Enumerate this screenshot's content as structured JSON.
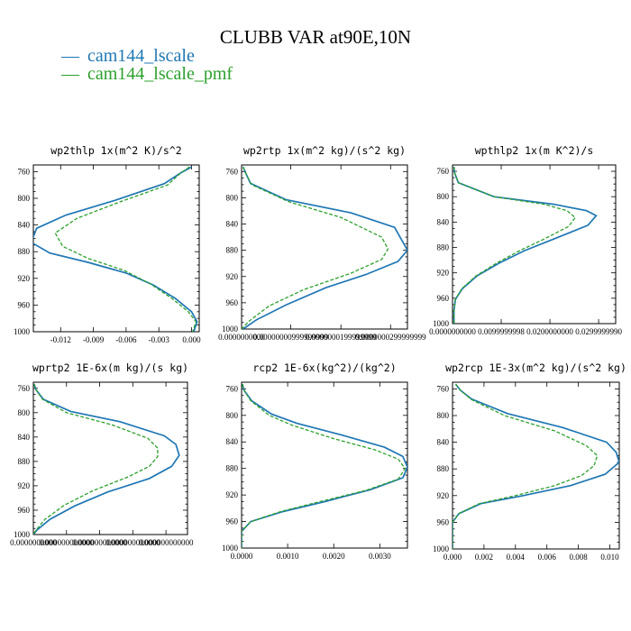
{
  "title": "CLUBB VAR at90E,10N",
  "colors": {
    "cam144_lscale": "#1f77b4",
    "cam144_lscale_pmf": "#2ca02c"
  },
  "legend": [
    {
      "symbol": "—",
      "label": "cam144_lscale"
    },
    {
      "symbol": "—",
      "label": "cam144_lscale_pmf"
    }
  ],
  "chart_data": [
    {
      "type": "line",
      "title": "wp2thlp  1x(m^2 K)/s^2",
      "xlim": [
        -0.0145,
        0.0007
      ],
      "ylim": [
        1000,
        750
      ],
      "xticks": [
        -0.012,
        -0.009,
        -0.006,
        -0.003,
        0.0
      ],
      "xtick_labels": [
        "-0.012",
        "-0.009",
        "-0.006",
        "-0.003",
        "0.000"
      ],
      "yticks": [
        760,
        800,
        840,
        880,
        920,
        960,
        1000
      ],
      "ytick_labels": [
        "760",
        "800",
        "840",
        "880",
        "920",
        "960",
        "1000"
      ],
      "series": [
        {
          "name": "cam144_lscale",
          "points": [
            [
              0.0,
              753
            ],
            [
              -0.001,
              762
            ],
            [
              -0.0025,
              778
            ],
            [
              -0.007,
              803
            ],
            [
              -0.0115,
              825
            ],
            [
              -0.0142,
              845
            ],
            [
              -0.0147,
              866
            ],
            [
              -0.013,
              882
            ],
            [
              -0.0095,
              896
            ],
            [
              -0.006,
              912
            ],
            [
              -0.0035,
              930
            ],
            [
              -0.0015,
              950
            ],
            [
              0.0,
              970
            ],
            [
              0.0005,
              985
            ],
            [
              0.0002,
              1000
            ]
          ]
        },
        {
          "name": "cam144_lscale_pmf",
          "points": [
            [
              -0.0002,
              753
            ],
            [
              -0.001,
              762
            ],
            [
              -0.0022,
              780
            ],
            [
              -0.0065,
              805
            ],
            [
              -0.0105,
              830
            ],
            [
              -0.0125,
              852
            ],
            [
              -0.0118,
              872
            ],
            [
              -0.0095,
              890
            ],
            [
              -0.0062,
              908
            ],
            [
              -0.0038,
              928
            ],
            [
              -0.0018,
              950
            ],
            [
              -0.0003,
              970
            ],
            [
              0.0004,
              985
            ],
            [
              0.0001,
              1000
            ]
          ]
        }
      ]
    },
    {
      "type": "line",
      "title": "wp2rtp  1x(m^2 kg)/(s^2 kg)",
      "xlim": [
        0.0,
        3.34e-08
      ],
      "ylim": [
        1000,
        750
      ],
      "xticks": [
        0.0,
        9.9e-09,
        2e-08,
        3e-08
      ],
      "xtick_labels": [
        "0.0000000000",
        "0.00000000999999999",
        "0.0000000199999999",
        "0.0000000299999999"
      ],
      "yticks": [
        760,
        800,
        840,
        880,
        920,
        960,
        1000
      ],
      "ytick_labels": [
        "760",
        "800",
        "840",
        "880",
        "920",
        "960",
        "1000"
      ],
      "series": [
        {
          "name": "cam144_lscale",
          "points": [
            [
              3e-10,
              753
            ],
            [
              8e-10,
              762
            ],
            [
              1.8e-09,
              778
            ],
            [
              9e-09,
              803
            ],
            [
              2.2e-08,
              823
            ],
            [
              3.08e-08,
              845
            ],
            [
              3.34e-08,
              880
            ],
            [
              3.15e-08,
              897
            ],
            [
              2.5e-08,
              917
            ],
            [
              1.7e-08,
              937
            ],
            [
              9e-09,
              963
            ],
            [
              3e-09,
              986
            ],
            [
              3e-10,
              1000
            ]
          ]
        },
        {
          "name": "cam144_lscale_pmf",
          "points": [
            [
              3e-10,
              753
            ],
            [
              8e-10,
              762
            ],
            [
              2e-09,
              780
            ],
            [
              9.5e-09,
              806
            ],
            [
              2e-08,
              830
            ],
            [
              2.82e-08,
              860
            ],
            [
              2.95e-08,
              878
            ],
            [
              2.82e-08,
              894
            ],
            [
              2.2e-08,
              915
            ],
            [
              1.25e-08,
              940
            ],
            [
              5.5e-09,
              965
            ],
            [
              1.5e-09,
              988
            ],
            [
              0.0,
              1000
            ]
          ]
        }
      ]
    },
    {
      "type": "line",
      "title": "wpthlp2  1x(m K^2)/s",
      "xlim": [
        0.0,
        0.0335
      ],
      "ylim": [
        1000,
        750
      ],
      "xticks": [
        0.0,
        0.0099999998,
        0.02,
        0.0299999
      ],
      "xtick_labels": [
        "0.0000000000",
        "0.0099999998",
        "0.0200000000",
        "0.0299999990"
      ],
      "yticks": [
        760,
        800,
        840,
        880,
        920,
        960,
        1000
      ],
      "ytick_labels": [
        "760",
        "800",
        "840",
        "880",
        "920",
        "960",
        "1000"
      ],
      "series": [
        {
          "name": "cam144_lscale",
          "points": [
            [
              0.0003,
              753
            ],
            [
              0.0004,
              762
            ],
            [
              0.0012,
              778
            ],
            [
              0.0085,
              800
            ],
            [
              0.0208,
              812
            ],
            [
              0.0275,
              822
            ],
            [
              0.0295,
              830
            ],
            [
              0.0278,
              845
            ],
            [
              0.021,
              866
            ],
            [
              0.0148,
              885
            ],
            [
              0.0095,
              905
            ],
            [
              0.005,
              925
            ],
            [
              0.002,
              945
            ],
            [
              0.0006,
              962
            ],
            [
              0.0003,
              980
            ],
            [
              0.0003,
              1000
            ]
          ]
        },
        {
          "name": "cam144_lscale_pmf",
          "points": [
            [
              0.0003,
              753
            ],
            [
              0.0004,
              762
            ],
            [
              0.0012,
              778
            ],
            [
              0.0085,
              800
            ],
            [
              0.0188,
              812
            ],
            [
              0.0235,
              822
            ],
            [
              0.0252,
              833
            ],
            [
              0.0238,
              847
            ],
            [
              0.019,
              866
            ],
            [
              0.0138,
              885
            ],
            [
              0.009,
              905
            ],
            [
              0.0048,
              925
            ],
            [
              0.0019,
              945
            ],
            [
              0.0006,
              962
            ],
            [
              0.0003,
              980
            ],
            [
              0.0003,
              1000
            ]
          ]
        }
      ]
    },
    {
      "type": "line",
      "title": "wprtp2  1E-6x(m kg)/(s kg)",
      "xlim": [
        0.0,
        1.86
      ],
      "ylim": [
        1000,
        750
      ],
      "xticks": [
        0.0,
        0.4,
        0.8,
        1.2,
        1.6
      ],
      "xtick_labels": [
        "0.0000000000",
        "0.000000000000",
        "0.000000000000",
        "0.000000000000",
        "0.000000000000"
      ],
      "yticks": [
        760,
        800,
        840,
        880,
        920,
        960,
        1000
      ],
      "ytick_labels": [
        "760",
        "800",
        "840",
        "880",
        "920",
        "960",
        "1000"
      ],
      "series": [
        {
          "name": "cam144_lscale",
          "points": [
            [
              0.01,
              753
            ],
            [
              0.03,
              762
            ],
            [
              0.12,
              778
            ],
            [
              0.45,
              798
            ],
            [
              1.05,
              815
            ],
            [
              1.58,
              838
            ],
            [
              1.72,
              852
            ],
            [
              1.76,
              870
            ],
            [
              1.67,
              888
            ],
            [
              1.4,
              908
            ],
            [
              0.9,
              930
            ],
            [
              0.5,
              953
            ],
            [
              0.2,
              975
            ],
            [
              0.04,
              993
            ],
            [
              0.0,
              1000
            ]
          ]
        },
        {
          "name": "cam144_lscale_pmf",
          "points": [
            [
              0.01,
              753
            ],
            [
              0.03,
              762
            ],
            [
              0.11,
              778
            ],
            [
              0.4,
              800
            ],
            [
              0.95,
              820
            ],
            [
              1.38,
              842
            ],
            [
              1.5,
              858
            ],
            [
              1.5,
              872
            ],
            [
              1.4,
              888
            ],
            [
              1.15,
              905
            ],
            [
              0.72,
              928
            ],
            [
              0.37,
              952
            ],
            [
              0.14,
              975
            ],
            [
              0.03,
              993
            ],
            [
              0.0,
              1000
            ]
          ]
        }
      ]
    },
    {
      "type": "line",
      "title": "rcp2  1E-6x(kg^2)/(kg^2)",
      "xlim": [
        0.0,
        0.0036
      ],
      "ylim": [
        1000,
        750
      ],
      "xticks": [
        0.0,
        0.001,
        0.002,
        0.003
      ],
      "xtick_labels": [
        "0.0000",
        "0.0010",
        "0.0020",
        "0.0030"
      ],
      "yticks": [
        760,
        800,
        840,
        880,
        920,
        960,
        1000
      ],
      "ytick_labels": [
        "760",
        "800",
        "840",
        "880",
        "920",
        "960",
        "1000"
      ],
      "series": [
        {
          "name": "cam144_lscale",
          "points": [
            [
              2e-05,
              753
            ],
            [
              5e-05,
              762
            ],
            [
              0.00022,
              778
            ],
            [
              0.00065,
              798
            ],
            [
              0.0012,
              812
            ],
            [
              0.0022,
              830
            ],
            [
              0.0031,
              848
            ],
            [
              0.0035,
              862
            ],
            [
              0.0036,
              878
            ],
            [
              0.0035,
              894
            ],
            [
              0.0028,
              912
            ],
            [
              0.0018,
              930
            ],
            [
              0.0009,
              945
            ],
            [
              0.0002,
              960
            ],
            [
              0.0,
              975
            ],
            [
              0.0,
              1000
            ]
          ]
        },
        {
          "name": "cam144_lscale_pmf",
          "points": [
            [
              2e-05,
              753
            ],
            [
              5e-05,
              762
            ],
            [
              0.0002,
              778
            ],
            [
              0.0006,
              800
            ],
            [
              0.0011,
              815
            ],
            [
              0.002,
              835
            ],
            [
              0.0029,
              852
            ],
            [
              0.0034,
              866
            ],
            [
              0.00355,
              880
            ],
            [
              0.0034,
              896
            ],
            [
              0.0027,
              913
            ],
            [
              0.0017,
              930
            ],
            [
              0.00085,
              945
            ],
            [
              0.0002,
              960
            ],
            [
              0.0,
              975
            ],
            [
              0.0,
              1000
            ]
          ]
        }
      ]
    },
    {
      "type": "line",
      "title": "wp2rcp  1E-3x(m^2 kg)/(s^2 kg)",
      "xlim": [
        0.0,
        0.0106
      ],
      "ylim": [
        1000,
        750
      ],
      "xticks": [
        0.0,
        0.002,
        0.004,
        0.006,
        0.008,
        0.01
      ],
      "xtick_labels": [
        "0.000",
        "0.002",
        "0.004",
        "0.006",
        "0.008",
        "0.010"
      ],
      "yticks": [
        760,
        800,
        840,
        880,
        920,
        960,
        1000
      ],
      "ytick_labels": [
        "760",
        "800",
        "840",
        "880",
        "920",
        "960",
        "1000"
      ],
      "series": [
        {
          "name": "cam144_lscale",
          "points": [
            [
              0.0002,
              753
            ],
            [
              0.0005,
              762
            ],
            [
              0.0012,
              775
            ],
            [
              0.0035,
              797
            ],
            [
              0.007,
              818
            ],
            [
              0.0098,
              840
            ],
            [
              0.0104,
              855
            ],
            [
              0.0106,
              870
            ],
            [
              0.0097,
              888
            ],
            [
              0.0075,
              905
            ],
            [
              0.0045,
              920
            ],
            [
              0.0018,
              932
            ],
            [
              0.0004,
              947
            ],
            [
              0.0,
              960
            ],
            [
              0.0,
              1000
            ]
          ]
        },
        {
          "name": "cam144_lscale_pmf",
          "points": [
            [
              0.0002,
              753
            ],
            [
              0.0005,
              762
            ],
            [
              0.0012,
              776
            ],
            [
              0.0033,
              800
            ],
            [
              0.0065,
              823
            ],
            [
              0.0085,
              845
            ],
            [
              0.0092,
              860
            ],
            [
              0.009,
              875
            ],
            [
              0.0082,
              890
            ],
            [
              0.0065,
              905
            ],
            [
              0.004,
              920
            ],
            [
              0.0017,
              932
            ],
            [
              0.0004,
              947
            ],
            [
              0.0,
              960
            ],
            [
              0.0,
              1000
            ]
          ]
        }
      ]
    }
  ]
}
